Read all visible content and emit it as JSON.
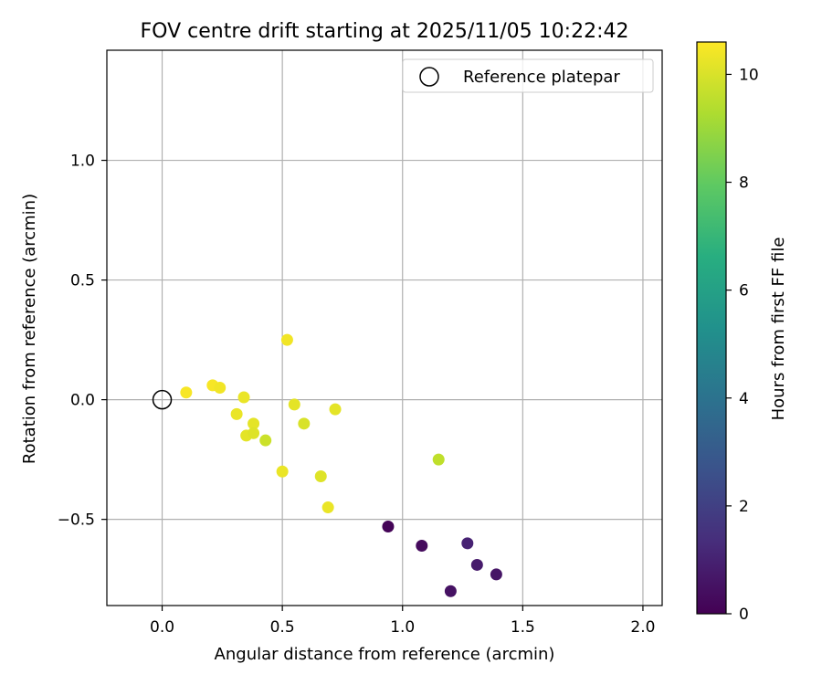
{
  "chart_data": {
    "type": "scatter",
    "title": "FOV centre drift starting at 2025/11/05 10:22:42",
    "xlabel": "Angular distance from reference (arcmin)",
    "ylabel": "Rotation from reference (arcmin)",
    "xlim": [
      -0.23,
      2.08
    ],
    "ylim": [
      -0.86,
      1.46
    ],
    "xticks": [
      0.0,
      0.5,
      1.0,
      1.5,
      2.0
    ],
    "xtick_labels": [
      "0.0",
      "0.5",
      "1.0",
      "1.5",
      "2.0"
    ],
    "yticks": [
      -0.5,
      0.0,
      0.5,
      1.0
    ],
    "ytick_labels": [
      "−0.5",
      "0.0",
      "0.5",
      "1.0"
    ],
    "grid": true,
    "legend": {
      "position": "top-right",
      "entries": [
        {
          "label": "Reference platepar",
          "marker": "open-circle"
        }
      ]
    },
    "reference_point": {
      "x": 0.0,
      "y": 0.0
    },
    "colorbar": {
      "label": "Hours from first FF file",
      "range": [
        0,
        10.6
      ],
      "ticks": [
        0,
        2,
        4,
        6,
        8,
        10
      ],
      "tick_labels": [
        "0",
        "2",
        "4",
        "6",
        "8",
        "10"
      ],
      "colormap": "viridis"
    },
    "points": [
      {
        "x": 0.94,
        "y": -0.53,
        "hours": 0.1
      },
      {
        "x": 1.08,
        "y": -0.61,
        "hours": 0.3
      },
      {
        "x": 1.2,
        "y": -0.8,
        "hours": 0.5
      },
      {
        "x": 1.27,
        "y": -0.6,
        "hours": 1.0
      },
      {
        "x": 1.31,
        "y": -0.69,
        "hours": 0.8
      },
      {
        "x": 1.39,
        "y": -0.73,
        "hours": 0.6
      },
      {
        "x": 1.15,
        "y": -0.25,
        "hours": 9.6
      },
      {
        "x": 0.1,
        "y": 0.03,
        "hours": 10.5
      },
      {
        "x": 0.21,
        "y": 0.06,
        "hours": 10.5
      },
      {
        "x": 0.24,
        "y": 0.05,
        "hours": 10.4
      },
      {
        "x": 0.31,
        "y": -0.06,
        "hours": 10.3
      },
      {
        "x": 0.34,
        "y": 0.01,
        "hours": 10.3
      },
      {
        "x": 0.35,
        "y": -0.15,
        "hours": 10.2
      },
      {
        "x": 0.38,
        "y": -0.1,
        "hours": 10.2
      },
      {
        "x": 0.38,
        "y": -0.14,
        "hours": 10.1
      },
      {
        "x": 0.43,
        "y": -0.17,
        "hours": 9.8
      },
      {
        "x": 0.5,
        "y": -0.3,
        "hours": 10.3
      },
      {
        "x": 0.52,
        "y": 0.25,
        "hours": 10.4
      },
      {
        "x": 0.55,
        "y": -0.02,
        "hours": 10.2
      },
      {
        "x": 0.59,
        "y": -0.1,
        "hours": 10.0
      },
      {
        "x": 0.66,
        "y": -0.32,
        "hours": 10.1
      },
      {
        "x": 0.69,
        "y": -0.45,
        "hours": 10.3
      },
      {
        "x": 0.72,
        "y": -0.04,
        "hours": 10.2
      }
    ]
  }
}
